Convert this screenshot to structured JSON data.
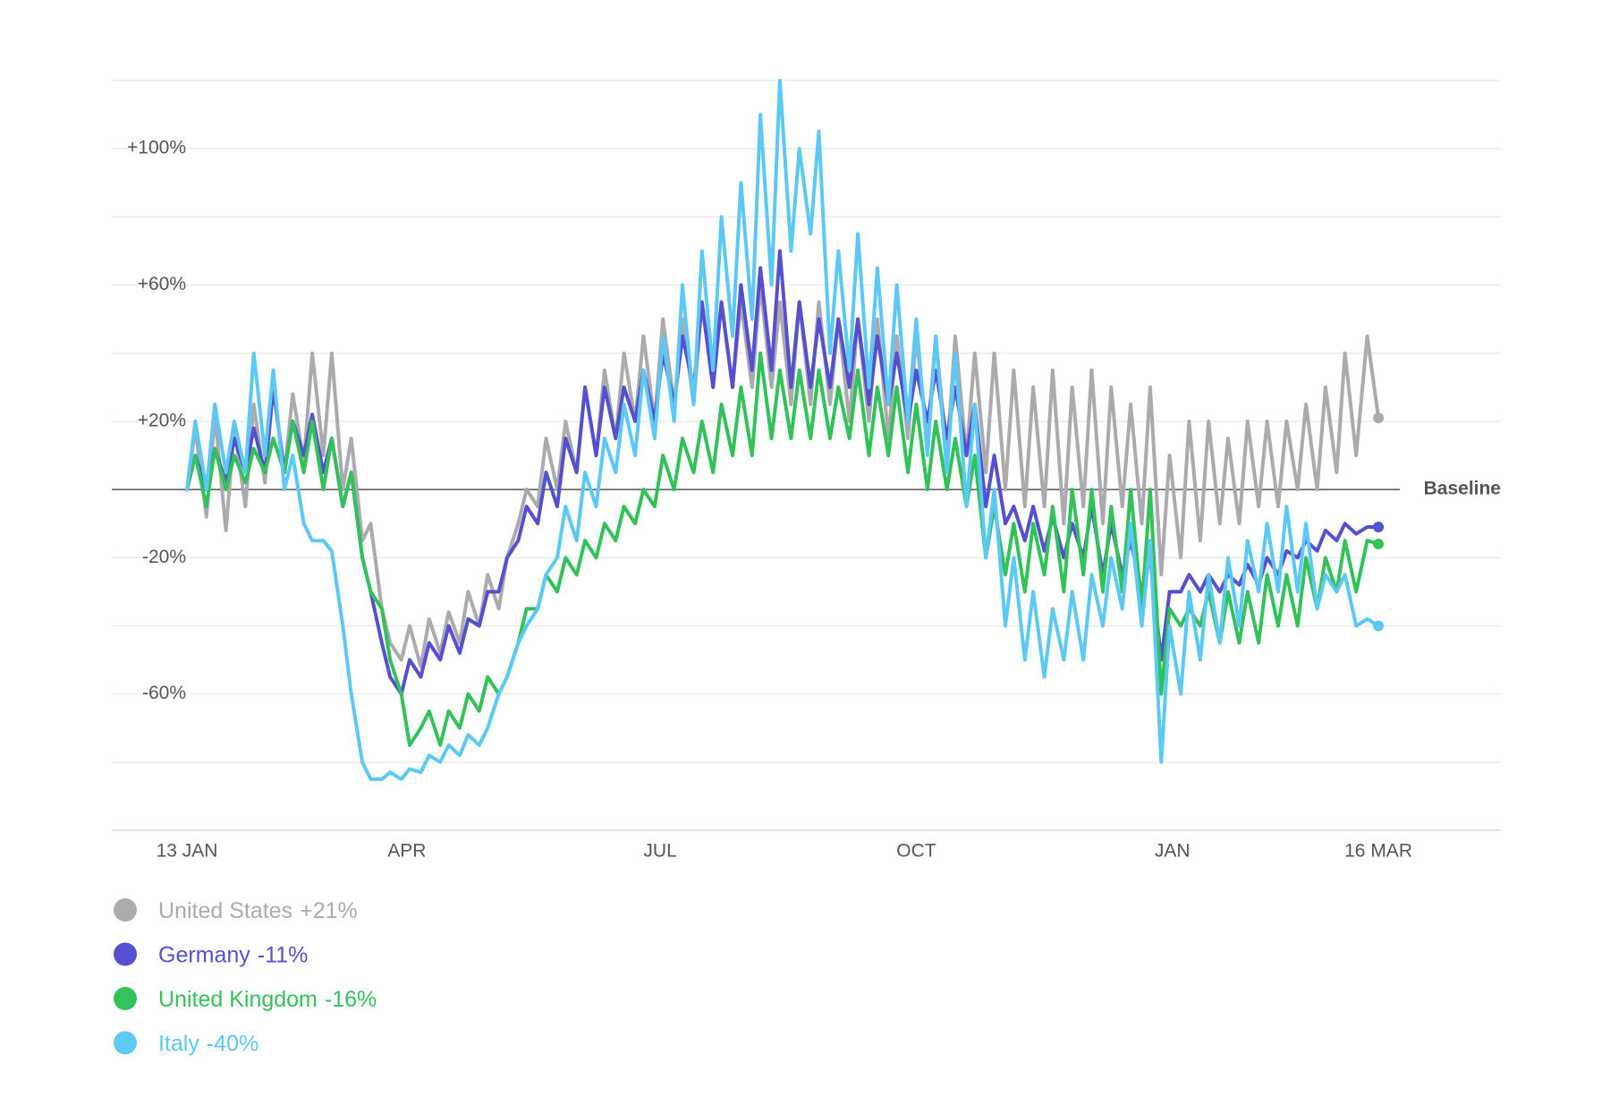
{
  "chart_data": {
    "type": "line",
    "x": [
      0,
      3,
      7,
      10,
      14,
      17,
      21,
      24,
      28,
      31,
      35,
      38,
      42,
      45,
      49,
      52,
      56,
      59,
      63,
      66,
      70,
      73,
      77,
      80,
      84,
      87,
      91,
      94,
      98,
      101,
      105,
      108,
      112,
      115,
      119,
      122,
      126,
      129,
      133,
      136,
      140,
      143,
      147,
      150,
      154,
      157,
      161,
      164,
      168,
      171,
      175,
      178,
      182,
      185,
      189,
      192,
      196,
      199,
      203,
      206,
      210,
      213,
      217,
      220,
      224,
      227,
      231,
      234,
      238,
      241,
      245,
      248,
      252,
      255,
      259,
      262,
      266,
      269,
      273,
      276,
      280,
      283,
      287,
      290,
      294,
      297,
      301,
      304,
      308,
      311,
      315,
      318,
      322,
      325,
      329,
      332,
      336,
      339,
      343,
      346,
      350,
      353,
      357,
      360,
      364,
      367,
      371,
      374,
      378,
      381,
      385,
      388,
      392,
      395,
      399,
      402,
      406,
      409,
      413,
      416,
      420,
      424,
      428
    ],
    "xlim": [
      -27,
      472
    ],
    "xticks": [
      {
        "value": 0,
        "label": "13 JAN"
      },
      {
        "value": 79,
        "label": "APR"
      },
      {
        "value": 170,
        "label": "JUL"
      },
      {
        "value": 262,
        "label": "OCT"
      },
      {
        "value": 354,
        "label": "JAN"
      },
      {
        "value": 428,
        "label": "16 MAR"
      }
    ],
    "ylim": [
      -100,
      120
    ],
    "yticks": [
      {
        "value": 120,
        "label": null
      },
      {
        "value": 100,
        "label": "+100%"
      },
      {
        "value": 80,
        "label": null
      },
      {
        "value": 60,
        "label": "+60%"
      },
      {
        "value": 40,
        "label": null
      },
      {
        "value": 20,
        "label": "+20%"
      },
      {
        "value": -20,
        "label": "-20%"
      },
      {
        "value": -40,
        "label": null
      },
      {
        "value": -60,
        "label": "-60%"
      },
      {
        "value": -80,
        "label": null
      },
      {
        "value": -100,
        "label": null
      }
    ],
    "baseline": {
      "value": 0,
      "label": "Baseline"
    },
    "grid": true,
    "legend": "bottom-left",
    "series": [
      {
        "name": "United States",
        "end_label": "+21%",
        "color": "#aaaaaf",
        "values": [
          0,
          18,
          -8,
          22,
          -12,
          18,
          -5,
          25,
          2,
          30,
          5,
          28,
          8,
          40,
          10,
          40,
          0,
          15,
          -15,
          -10,
          -35,
          -45,
          -50,
          -40,
          -52,
          -38,
          -48,
          -36,
          -45,
          -30,
          -40,
          -25,
          -35,
          -20,
          -10,
          0,
          -5,
          15,
          0,
          20,
          5,
          30,
          10,
          35,
          15,
          40,
          20,
          45,
          20,
          50,
          25,
          50,
          25,
          55,
          30,
          55,
          30,
          55,
          30,
          60,
          30,
          55,
          25,
          55,
          25,
          55,
          25,
          50,
          20,
          50,
          20,
          50,
          15,
          45,
          15,
          45,
          15,
          45,
          10,
          45,
          10,
          40,
          5,
          40,
          0,
          35,
          -5,
          30,
          -5,
          35,
          -10,
          30,
          -5,
          35,
          -10,
          30,
          -5,
          25,
          -10,
          30,
          -25,
          10,
          -20,
          20,
          -15,
          20,
          -10,
          15,
          -10,
          20,
          -5,
          20,
          -5,
          20,
          0,
          25,
          0,
          30,
          5,
          40,
          10,
          45,
          21
        ]
      },
      {
        "name": "Germany",
        "end_label": "-11%",
        "color": "#5450d0",
        "values": [
          0,
          10,
          0,
          12,
          2,
          15,
          5,
          18,
          5,
          30,
          5,
          20,
          10,
          22,
          5,
          15,
          -5,
          5,
          -20,
          -30,
          -45,
          -55,
          -60,
          -50,
          -55,
          -45,
          -50,
          -40,
          -48,
          -38,
          -40,
          -30,
          -30,
          -20,
          -15,
          -5,
          -10,
          5,
          -5,
          15,
          5,
          30,
          10,
          30,
          15,
          30,
          20,
          35,
          20,
          40,
          25,
          45,
          30,
          55,
          30,
          55,
          30,
          60,
          35,
          65,
          35,
          70,
          30,
          55,
          30,
          50,
          30,
          50,
          30,
          50,
          25,
          45,
          25,
          40,
          20,
          35,
          20,
          35,
          15,
          30,
          10,
          25,
          -5,
          10,
          -10,
          -5,
          -15,
          -5,
          -18,
          -8,
          -20,
          -10,
          -20,
          -5,
          -25,
          -10,
          -25,
          -15,
          -30,
          -20,
          -50,
          -30,
          -30,
          -25,
          -30,
          -25,
          -30,
          -25,
          -28,
          -22,
          -28,
          -20,
          -25,
          -18,
          -20,
          -15,
          -18,
          -12,
          -15,
          -10,
          -13,
          -11,
          -11
        ]
      },
      {
        "name": "United Kingdom",
        "end_label": "-16%",
        "color": "#33c15a",
        "values": [
          0,
          10,
          -5,
          12,
          0,
          10,
          2,
          12,
          5,
          15,
          5,
          20,
          5,
          20,
          0,
          15,
          -5,
          5,
          -20,
          -30,
          -35,
          -50,
          -60,
          -75,
          -70,
          -65,
          -75,
          -65,
          -70,
          -60,
          -65,
          -55,
          -60,
          -55,
          -45,
          -35,
          -35,
          -25,
          -30,
          -20,
          -25,
          -15,
          -20,
          -10,
          -15,
          -5,
          -10,
          0,
          -5,
          10,
          0,
          15,
          5,
          20,
          5,
          25,
          10,
          30,
          10,
          40,
          15,
          35,
          15,
          35,
          15,
          35,
          15,
          30,
          15,
          35,
          10,
          30,
          10,
          30,
          5,
          25,
          0,
          20,
          0,
          15,
          -5,
          10,
          -20,
          -5,
          -25,
          -10,
          -30,
          -10,
          -25,
          -5,
          -30,
          0,
          -25,
          0,
          -30,
          -5,
          -30,
          0,
          -35,
          0,
          -60,
          -35,
          -40,
          -35,
          -40,
          -30,
          -45,
          -30,
          -45,
          -30,
          -45,
          -25,
          -40,
          -25,
          -40,
          -20,
          -35,
          -20,
          -30,
          -15,
          -30,
          -15,
          -16
        ]
      },
      {
        "name": "Italy",
        "end_label": "-40%",
        "color": "#5bc8f5",
        "values": [
          0,
          20,
          0,
          25,
          5,
          20,
          5,
          40,
          10,
          35,
          0,
          10,
          -10,
          -15,
          -15,
          -18,
          -40,
          -60,
          -80,
          -85,
          -85,
          -83,
          -85,
          -82,
          -83,
          -78,
          -80,
          -75,
          -78,
          -72,
          -75,
          -70,
          -60,
          -55,
          -45,
          -40,
          -35,
          -25,
          -20,
          -5,
          -15,
          5,
          -5,
          15,
          5,
          25,
          10,
          35,
          15,
          45,
          20,
          60,
          25,
          70,
          35,
          80,
          45,
          90,
          50,
          110,
          60,
          120,
          70,
          100,
          75,
          105,
          40,
          70,
          35,
          75,
          30,
          65,
          25,
          60,
          20,
          50,
          10,
          45,
          5,
          40,
          -5,
          25,
          -20,
          0,
          -40,
          -20,
          -50,
          -30,
          -55,
          -35,
          -50,
          -30,
          -50,
          -25,
          -40,
          -20,
          -35,
          -10,
          -40,
          -15,
          -80,
          -40,
          -60,
          -30,
          -50,
          -25,
          -45,
          -20,
          -40,
          -15,
          -30,
          -10,
          -30,
          -5,
          -30,
          -10,
          -35,
          -25,
          -30,
          -25,
          -40,
          -38,
          -40
        ]
      }
    ]
  }
}
